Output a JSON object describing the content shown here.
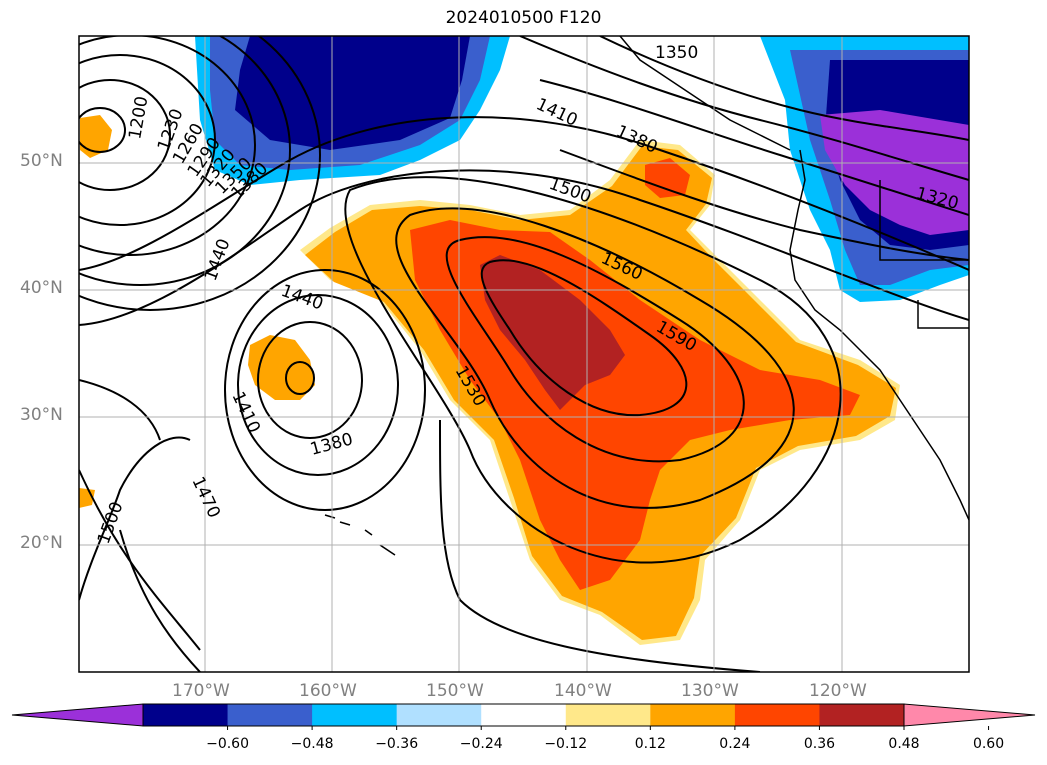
{
  "title": "2024010500 F120",
  "map": {
    "lat_labels": [
      "50°N",
      "40°N",
      "30°N",
      "20°N"
    ],
    "lon_labels": [
      "170°W",
      "160°W",
      "150°W",
      "140°W",
      "130°W",
      "120°W"
    ],
    "contour_labels": [
      "1200",
      "1230",
      "1260",
      "1290",
      "1320",
      "1350",
      "1380",
      "1410",
      "1440",
      "1470",
      "1500",
      "1530",
      "1560",
      "1590",
      "1410",
      "1380",
      "1350",
      "1320"
    ]
  },
  "colorbar": {
    "ticks": [
      "−0.60",
      "−0.48",
      "−0.36",
      "−0.24",
      "−0.12",
      "0.12",
      "0.24",
      "0.36",
      "0.48",
      "0.60"
    ],
    "colors": [
      "#9b30d9",
      "#00008b",
      "#3a5fcd",
      "#00bfff",
      "#b0e0ff",
      "#ffffff",
      "#ffe88a",
      "#ffa500",
      "#ff4500",
      "#b22222",
      "#ff88aa"
    ]
  }
}
